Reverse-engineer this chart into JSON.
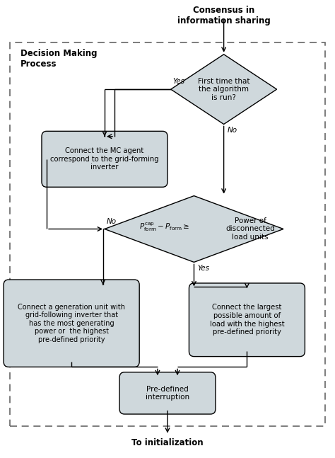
{
  "title_top": "Consensus in\ninformation sharing",
  "title_bottom": "To initialization",
  "label_dmp": "Decision Making\nProcess",
  "diamond1_text": "First time that\nthe algorithm\nis run?",
  "box1_text": "Connect the MC agent\ncorrespond to the grid-forming\ninverter",
  "diamond2_text_math": "$P_{\\mathrm{form}}^{\\mathrm{cap}} - P_{\\mathrm{form}} \\geq$",
  "diamond2_text_right": "Power of\ndisconnected\nload units",
  "box2_text": "Connect a generation unit with\ngrid-following inverter that\nhas the most generating\npower or  the highest\npre-defined priority",
  "box3_text": "Connect the largest\npossible amount of\nload with the highest\npre-defined priority",
  "box4_text": "Pre-defined\ninterruption",
  "yes1": "Yes",
  "no1": "No",
  "no2": "No",
  "yes2": "Yes",
  "box_color": "#cfd8dc",
  "diamond_color": "#cfd8dc",
  "arrow_color": "#000000",
  "border_color": "#666666",
  "bg_color": "#ffffff",
  "text_color": "#000000",
  "fig_w": 4.74,
  "fig_h": 6.47,
  "dpi": 100
}
